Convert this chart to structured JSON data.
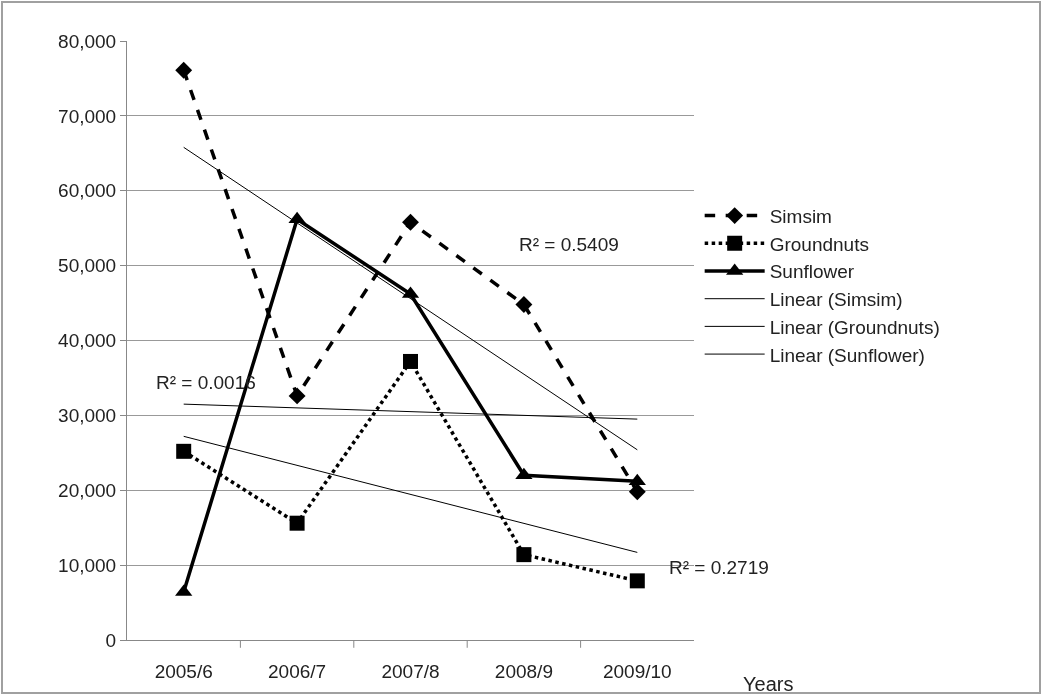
{
  "chart_data": {
    "type": "line",
    "xlabel": "Years",
    "categories": [
      "2005/6",
      "2006/7",
      "2007/8",
      "2008/9",
      "2009/10"
    ],
    "series": [
      {
        "name": "Simsim",
        "color": "#000000",
        "marker": "diamond",
        "line_style": "dashed",
        "values": [
          76100,
          32600,
          55800,
          44800,
          19800
        ]
      },
      {
        "name": "Groundnuts",
        "color": "#000000",
        "marker": "square",
        "line_style": "dotted",
        "values": [
          25200,
          15600,
          37200,
          11400,
          7900
        ]
      },
      {
        "name": "Sunflower",
        "color": "#000000",
        "marker": "triangle",
        "line_style": "solid",
        "values": [
          6400,
          56200,
          46200,
          22000,
          21200
        ]
      },
      {
        "name": "Linear (Simsim)",
        "type": "line",
        "color": "#000000",
        "marker": "none",
        "line_style": "solid",
        "x": [
          "2005/6",
          "2009/10"
        ],
        "values": [
          65800,
          25400
        ]
      },
      {
        "name": "Linear (Groundnuts)",
        "type": "line",
        "color": "#000000",
        "marker": "none",
        "line_style": "solid",
        "x": [
          "2005/6",
          "2009/10"
        ],
        "values": [
          27200,
          11700
        ]
      },
      {
        "name": "Linear (Sunflower)",
        "type": "line",
        "color": "#000000",
        "marker": "none",
        "line_style": "solid",
        "x": [
          "2005/6",
          "2009/10"
        ],
        "values": [
          31500,
          29500
        ]
      }
    ],
    "annotations": [
      "R² = 0.5409",
      "R² = 0.0016",
      "R² = 0.2719"
    ],
    "ylim": [
      0,
      80000
    ],
    "yticks": [
      {
        "value": 0,
        "label": "0"
      },
      {
        "value": 10000,
        "label": "10,000"
      },
      {
        "value": 20000,
        "label": "20,000"
      },
      {
        "value": 30000,
        "label": "30,000"
      },
      {
        "value": 40000,
        "label": "40,000"
      },
      {
        "value": 50000,
        "label": "50,000"
      },
      {
        "value": 60000,
        "label": "60,000"
      },
      {
        "value": 70000,
        "label": "70,000"
      },
      {
        "value": 80000,
        "label": "80,000"
      }
    ],
    "grid": "y",
    "legend": "right"
  }
}
